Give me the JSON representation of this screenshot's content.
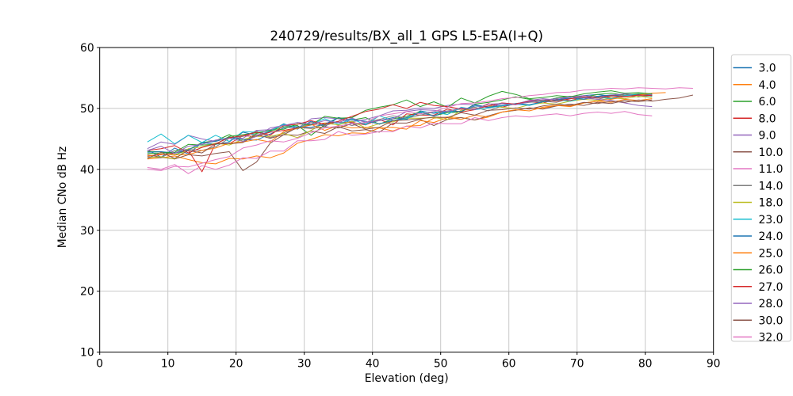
{
  "chart_data": {
    "type": "line",
    "title": "240729/results/BX_all_1 GPS L5-E5A(I+Q)",
    "xlabel": "Elevation (deg)",
    "ylabel": "Median CNo dB Hz",
    "xlim": [
      0,
      90
    ],
    "ylim": [
      10,
      60
    ],
    "xticks": [
      0,
      10,
      20,
      30,
      40,
      50,
      60,
      70,
      80,
      90
    ],
    "yticks": [
      10,
      20,
      30,
      40,
      50,
      60
    ],
    "grid": true,
    "legend_position": "outside-right",
    "x_start": 7,
    "x_step": 2,
    "series": [
      {
        "name": "3.0",
        "color": "#1f77b4",
        "values": [
          43.2,
          42.0,
          43.5,
          42.5,
          44.4,
          44.1,
          44.5,
          46.1,
          45.6,
          46.2,
          47.5,
          46.6,
          47.9,
          47.0,
          48.5,
          47.5,
          47.5,
          48.0,
          48.5,
          48.2,
          49.6,
          49.2,
          49.5,
          49.5,
          50.4,
          50.2,
          50.8,
          50.7,
          51.3,
          51.2,
          51.7,
          51.6,
          52.1,
          52.3,
          52.0,
          52.4,
          52.2,
          52.5
        ]
      },
      {
        "name": "4.0",
        "color": "#ff7f0e",
        "values": [
          41.7,
          41.9,
          42.2,
          41.6,
          41.1,
          40.9,
          41.8,
          41.7,
          42.2,
          41.9,
          42.7,
          44.3,
          44.9,
          45.7,
          45.5,
          46.0,
          45.9,
          46.8,
          46.3,
          47.1,
          47.2,
          48.4,
          48.6,
          48.5,
          48.1,
          48.6,
          49.4,
          49.7,
          50.1,
          50.0,
          50.5,
          50.4,
          50.9,
          51.2,
          51.0,
          51.5,
          51.3,
          51.6
        ]
      },
      {
        "name": "6.0",
        "color": "#2ca02c",
        "values": [
          42.9,
          42.9,
          42.4,
          43.2,
          44.4,
          44.7,
          45.7,
          44.6,
          45.9,
          46.4,
          47.0,
          47.2,
          45.6,
          47.3,
          48.5,
          48.1,
          48.5,
          47.4,
          48.3,
          48.7,
          49.5,
          48.8,
          49.3,
          49.4,
          50.7,
          51.0,
          51.4,
          51.9,
          51.5,
          51.2,
          51.7,
          52.0,
          51.8,
          52.3,
          52.5,
          52.2,
          52.4,
          52.3
        ]
      },
      {
        "name": "8.0",
        "color": "#d62728",
        "values": [
          42.2,
          42.4,
          42.7,
          43.1,
          39.6,
          44.3,
          44.2,
          45.5,
          45.4,
          46.1,
          46.4,
          46.8,
          47.3,
          47.6,
          47.7,
          47.7,
          47.3,
          48.2,
          47.3,
          49.1,
          48.9,
          48.9,
          49.9,
          49.4,
          49.8,
          50.8,
          50.2,
          50.8,
          51.1,
          50.9,
          51.5,
          51.3,
          51.8,
          52.0,
          51.7,
          52.1,
          51.9,
          52.2
        ]
      },
      {
        "name": "9.0",
        "color": "#9467bd",
        "values": [
          43.4,
          44.5,
          44.1,
          45.6,
          45.0,
          44.6,
          45.2,
          45.1,
          46.4,
          46.5,
          47.3,
          46.7,
          48.3,
          48.5,
          48.3,
          47.8,
          48.2,
          48.8,
          49.6,
          49.7,
          50.1,
          50.0,
          50.5,
          50.7,
          50.6,
          50.1,
          50.9,
          50.7,
          51.3,
          51.6,
          51.4,
          51.9,
          52.1,
          51.8,
          52.2,
          52.4,
          52.1,
          52.3
        ]
      },
      {
        "name": "10.0",
        "color": "#8c564b",
        "values": [
          42.4,
          42.0,
          41.7,
          42.4,
          42.2,
          42.6,
          42.9,
          39.8,
          41.2,
          44.3,
          45.7,
          45.6,
          46.3,
          45.9,
          47.0,
          46.3,
          46.5,
          46.1,
          47.6,
          47.6,
          48.2,
          47.2,
          48.2,
          48.5,
          48.1,
          48.8,
          49.4,
          49.7,
          50.1,
          49.9,
          50.4,
          50.7,
          50.5,
          51.0,
          50.8,
          51.3,
          51.1,
          51.4
        ]
      },
      {
        "name": "11.0",
        "color": "#e377c2",
        "values": [
          40.3,
          40.0,
          40.8,
          39.3,
          40.6,
          40.0,
          40.7,
          41.9,
          41.8,
          43.0,
          43.0,
          44.7,
          44.7,
          44.9,
          46.2,
          45.6,
          45.8,
          46.2,
          46.2,
          47.1,
          46.8,
          47.6,
          47.5,
          47.5,
          48.5,
          48.0,
          48.5,
          48.8,
          48.6,
          48.9,
          49.1,
          48.8,
          49.2,
          49.4,
          49.2,
          49.5,
          49.0,
          48.8
        ]
      },
      {
        "name": "14.0",
        "color": "#7f7f7f",
        "values": [
          42.1,
          41.9,
          43.1,
          43.3,
          43.1,
          43.7,
          45.1,
          45.4,
          46.3,
          45.2,
          46.0,
          46.8,
          47.7,
          47.2,
          47.8,
          47.2,
          47.7,
          48.2,
          48.8,
          48.4,
          48.9,
          49.4,
          49.6,
          49.9,
          50.2,
          49.6,
          50.4,
          50.7,
          51.0,
          51.2,
          51.0,
          51.6,
          51.8,
          51.5,
          52.0,
          52.2,
          51.9,
          52.1
        ]
      },
      {
        "name": "18.0",
        "color": "#bcbd22",
        "values": [
          41.9,
          42.1,
          41.7,
          43.4,
          43.7,
          44.3,
          44.0,
          44.9,
          45.4,
          45.4,
          45.9,
          45.2,
          46.4,
          47.6,
          47.3,
          47.9,
          46.8,
          47.5,
          47.8,
          48.4,
          48.4,
          48.5,
          48.2,
          49.7,
          49.9,
          50.4,
          50.2,
          50.0,
          50.6,
          50.9,
          50.7,
          51.2,
          51.5,
          51.3,
          51.7,
          51.6,
          52.0,
          51.8
        ]
      },
      {
        "name": "23.0",
        "color": "#17becf",
        "values": [
          44.5,
          45.8,
          44.2,
          45.6,
          44.4,
          45.6,
          44.6,
          46.2,
          46.1,
          46.3,
          47.4,
          46.9,
          47.4,
          48.3,
          47.4,
          48.3,
          47.3,
          48.8,
          48.0,
          48.3,
          49.4,
          49.4,
          49.0,
          50.2,
          49.8,
          50.1,
          50.4,
          50.7,
          50.5,
          51.1,
          51.4,
          51.2,
          51.7,
          51.9,
          51.6,
          52.1,
          52.3,
          52.0
        ]
      },
      {
        "name": "24.0",
        "color": "#1f77b4",
        "values": [
          42.8,
          42.9,
          42.7,
          43.2,
          44.3,
          44.6,
          45.3,
          44.9,
          44.8,
          45.8,
          46.8,
          47.0,
          46.9,
          47.4,
          48.5,
          48.1,
          47.9,
          47.5,
          48.0,
          48.5,
          49.3,
          48.8,
          49.5,
          49.5,
          50.6,
          50.2,
          50.5,
          50.8,
          50.6,
          51.1,
          51.4,
          51.7,
          51.5,
          52.0,
          52.2,
          51.9,
          52.3,
          52.1
        ]
      },
      {
        "name": "25.0",
        "color": "#ff7f0e",
        "values": [
          42.2,
          42.5,
          42.4,
          42.4,
          43.1,
          43.5,
          44.3,
          44.5,
          44.9,
          44.5,
          46.2,
          46.7,
          47.4,
          46.4,
          47.2,
          46.8,
          46.9,
          46.8,
          46.9,
          46.6,
          48.0,
          47.7,
          48.5,
          48.2,
          48.9,
          48.6,
          49.4,
          49.8,
          49.6,
          50.2,
          50.5,
          50.3,
          50.9,
          51.2,
          51.5,
          51.9,
          52.2,
          52.5,
          52.6
        ]
      },
      {
        "name": "26.0",
        "color": "#2ca02c",
        "values": [
          42.6,
          42.7,
          42.8,
          44.1,
          44.0,
          44.1,
          45.4,
          45.7,
          46.0,
          46.4,
          46.6,
          47.5,
          47.3,
          48.7,
          48.4,
          48.5,
          49.7,
          50.2,
          50.6,
          51.4,
          50.3,
          51.1,
          50.2,
          51.7,
          50.9,
          52.0,
          52.8,
          52.3,
          51.6,
          51.8,
          52.1,
          51.9,
          52.4,
          52.7,
          52.9,
          52.5,
          52.6,
          52.4
        ]
      },
      {
        "name": "27.0",
        "color": "#d62728",
        "values": [
          43.1,
          43.4,
          43.9,
          42.7,
          43.6,
          44.2,
          45.2,
          45.5,
          46.1,
          45.6,
          47.2,
          47.4,
          48.0,
          47.4,
          47.9,
          48.7,
          49.5,
          49.9,
          50.6,
          50.0,
          51.0,
          50.5,
          50.3,
          49.9,
          49.9,
          50.4,
          50.9,
          50.7,
          51.2,
          51.4,
          51.2,
          51.6,
          51.9,
          51.7,
          52.1,
          51.9,
          52.2,
          52.1
        ]
      },
      {
        "name": "28.0",
        "color": "#9467bd",
        "values": [
          43.1,
          43.8,
          42.6,
          43.8,
          44.1,
          44.8,
          45.1,
          44.6,
          45.4,
          46.8,
          47.2,
          47.7,
          47.4,
          48.0,
          47.7,
          48.4,
          47.7,
          48.0,
          48.3,
          49.5,
          49.8,
          49.7,
          49.5,
          50.1,
          49.8,
          50.7,
          50.8,
          50.6,
          51.1,
          51.4,
          51.6,
          51.9,
          51.7,
          51.5,
          51.3,
          50.9,
          50.5,
          50.3
        ]
      },
      {
        "name": "30.0",
        "color": "#8c564b",
        "values": [
          41.8,
          42.8,
          41.8,
          43.1,
          42.7,
          44.2,
          44.2,
          44.4,
          45.7,
          45.1,
          45.7,
          46.9,
          46.7,
          47.0,
          46.8,
          47.5,
          46.6,
          46.9,
          48.0,
          48.1,
          48.3,
          48.6,
          48.5,
          49.3,
          48.9,
          49.7,
          49.8,
          50.1,
          49.9,
          50.4,
          50.7,
          50.5,
          51.0,
          50.8,
          51.2,
          51.0,
          51.4,
          51.2,
          51.5,
          51.7,
          52.2
        ]
      },
      {
        "name": "32.0",
        "color": "#e377c2",
        "values": [
          40.0,
          39.8,
          40.5,
          40.4,
          41.0,
          41.6,
          42.1,
          43.5,
          44.0,
          44.7,
          44.5,
          45.1,
          46.0,
          46.8,
          47.1,
          47.5,
          47.7,
          48.8,
          49.1,
          49.5,
          49.1,
          49.5,
          50.2,
          50.8,
          50.9,
          51.2,
          51.6,
          51.8,
          52.1,
          52.3,
          52.6,
          52.7,
          53.0,
          53.1,
          53.3,
          53.2,
          53.4,
          53.3,
          53.2,
          53.4,
          53.3
        ]
      }
    ]
  },
  "style": {
    "grid_color": "#c8c8c8",
    "spine_color": "#000000",
    "legend_border_color": "#cccccc",
    "text_color": "#000000",
    "background": "#ffffff"
  }
}
